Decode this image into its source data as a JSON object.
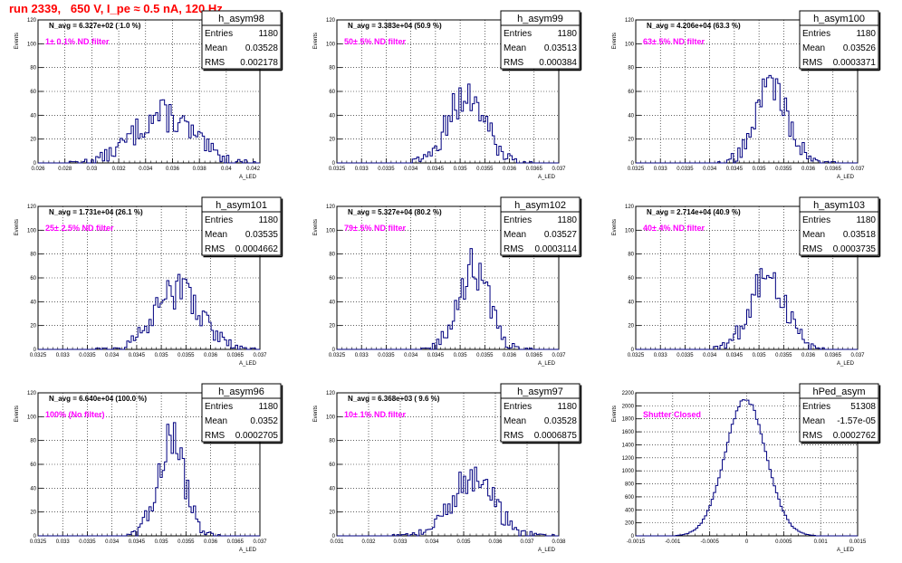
{
  "page": {
    "title": "run 2339,   650 V, I_pe ≈ 0.5 nA, 120 Hz",
    "stats_labels": [
      "Entries",
      "Mean",
      "RMS"
    ],
    "y_axis_label": "Events",
    "x_axis_label": "A_LED",
    "colors": {
      "title": "#ff0000",
      "note": "#ff00ff",
      "histogram": "#000080",
      "grid": "#000000"
    }
  },
  "chart_data": [
    {
      "type": "histogram",
      "name": "h_asym98",
      "n_avg": "N_avg = 6.327e+02 ( 1.0 %)",
      "note": "1± 0.1% ND filter",
      "stats": {
        "entries": "1180",
        "mean": "0.03528",
        "rms": "0.002178"
      },
      "xlim": [
        0.026,
        0.0425
      ],
      "ylim": [
        0,
        120
      ],
      "xticks": [
        0.026,
        0.028,
        0.03,
        0.032,
        0.034,
        0.036,
        0.038,
        0.04,
        0.042
      ],
      "xtick_labels": [
        "0.026",
        "0.028",
        "0.03",
        "0.032",
        "0.034",
        "0.036",
        "0.038",
        "0.04",
        "0.042"
      ],
      "yticks": [
        0,
        20,
        40,
        60,
        80,
        100,
        120
      ],
      "dist": {
        "mean": 0.03528,
        "sigma": 0.002178,
        "peak": 40
      }
    },
    {
      "type": "histogram",
      "name": "h_asym99",
      "n_avg": "N_avg = 3.383e+04 (50.9 %)",
      "note": "50± 5% ND filter",
      "stats": {
        "entries": "1180",
        "mean": "0.03513",
        "rms": "0.000384"
      },
      "xlim": [
        0.0325,
        0.037
      ],
      "ylim": [
        0,
        120
      ],
      "xticks": [
        0.0325,
        0.033,
        0.0335,
        0.034,
        0.0345,
        0.035,
        0.0355,
        0.036,
        0.0365,
        0.037
      ],
      "xtick_labels": [
        "0.0325",
        "0.033",
        "0.0335",
        "0.034",
        "0.0345",
        "0.035",
        "0.0355",
        "0.036",
        "0.0365",
        "0.037"
      ],
      "yticks": [
        0,
        20,
        40,
        60,
        80,
        100,
        120
      ],
      "dist": {
        "mean": 0.03513,
        "sigma": 0.000384,
        "peak": 56
      }
    },
    {
      "type": "histogram",
      "name": "h_asym100",
      "n_avg": "N_avg = 4.206e+04 (63.3 %)",
      "note": "63± 5% ND filter",
      "stats": {
        "entries": "1180",
        "mean": "0.03526",
        "rms": "0.0003371"
      },
      "xlim": [
        0.0325,
        0.037
      ],
      "ylim": [
        0,
        120
      ],
      "xticks": [
        0.0325,
        0.033,
        0.0335,
        0.034,
        0.0345,
        0.035,
        0.0355,
        0.036,
        0.0365,
        0.037
      ],
      "xtick_labels": [
        "0.0325",
        "0.033",
        "0.0335",
        "0.034",
        "0.0345",
        "0.035",
        "0.0355",
        "0.036",
        "0.0365",
        "0.037"
      ],
      "yticks": [
        0,
        20,
        40,
        60,
        80,
        100,
        120
      ],
      "dist": {
        "mean": 0.03526,
        "sigma": 0.0003371,
        "peak": 64
      }
    },
    {
      "type": "histogram",
      "name": "h_asym101",
      "n_avg": "N_avg = 1.731e+04 (26.1 %)",
      "note": "25± 2.5% ND filter",
      "stats": {
        "entries": "1180",
        "mean": "0.03535",
        "rms": "0.0004662"
      },
      "xlim": [
        0.0325,
        0.037
      ],
      "ylim": [
        0,
        120
      ],
      "xticks": [
        0.0325,
        0.033,
        0.0335,
        0.034,
        0.0345,
        0.035,
        0.0355,
        0.036,
        0.0365,
        0.037
      ],
      "xtick_labels": [
        "0.0325",
        "0.033",
        "0.0335",
        "0.034",
        "0.0345",
        "0.035",
        "0.0355",
        "0.036",
        "0.0365",
        "0.037"
      ],
      "yticks": [
        0,
        20,
        40,
        60,
        80,
        100,
        120
      ],
      "dist": {
        "mean": 0.03535,
        "sigma": 0.0004662,
        "peak": 50
      }
    },
    {
      "type": "histogram",
      "name": "h_asym102",
      "n_avg": "N_avg = 5.327e+04 (80.2 %)",
      "note": "79± 5% ND filter",
      "stats": {
        "entries": "1180",
        "mean": "0.03527",
        "rms": "0.0003114"
      },
      "xlim": [
        0.0325,
        0.037
      ],
      "ylim": [
        0,
        120
      ],
      "xticks": [
        0.0325,
        0.033,
        0.0335,
        0.034,
        0.0345,
        0.035,
        0.0355,
        0.036,
        0.0365,
        0.037
      ],
      "xtick_labels": [
        "0.0325",
        "0.033",
        "0.0335",
        "0.034",
        "0.0345",
        "0.035",
        "0.0355",
        "0.036",
        "0.0365",
        "0.037"
      ],
      "yticks": [
        0,
        20,
        40,
        60,
        80,
        100,
        120
      ],
      "dist": {
        "mean": 0.03527,
        "sigma": 0.0003114,
        "peak": 68
      }
    },
    {
      "type": "histogram",
      "name": "h_asym103",
      "n_avg": "N_avg = 2.714e+04 (40.9 %)",
      "note": "40± 4% ND filter",
      "stats": {
        "entries": "1180",
        "mean": "0.03518",
        "rms": "0.0003735"
      },
      "xlim": [
        0.0325,
        0.037
      ],
      "ylim": [
        0,
        120
      ],
      "xticks": [
        0.0325,
        0.033,
        0.0335,
        0.034,
        0.0345,
        0.035,
        0.0355,
        0.036,
        0.0365,
        0.037
      ],
      "xtick_labels": [
        "0.0325",
        "0.033",
        "0.0335",
        "0.034",
        "0.0345",
        "0.035",
        "0.0355",
        "0.036",
        "0.0365",
        "0.037"
      ],
      "yticks": [
        0,
        20,
        40,
        60,
        80,
        100,
        120
      ],
      "dist": {
        "mean": 0.03518,
        "sigma": 0.0003735,
        "peak": 58
      }
    },
    {
      "type": "histogram",
      "name": "h_asym96",
      "n_avg": "N_avg = 6.640e+04 (100.0 %)",
      "note": "100% (No filter)",
      "stats": {
        "entries": "1180",
        "mean": "0.0352",
        "rms": "0.0002705"
      },
      "xlim": [
        0.0325,
        0.037
      ],
      "ylim": [
        0,
        120
      ],
      "xticks": [
        0.0325,
        0.033,
        0.0335,
        0.034,
        0.0345,
        0.035,
        0.0355,
        0.036,
        0.0365,
        0.037
      ],
      "xtick_labels": [
        "0.0325",
        "0.033",
        "0.0335",
        "0.034",
        "0.0345",
        "0.035",
        "0.0355",
        "0.036",
        "0.0365",
        "0.037"
      ],
      "yticks": [
        0,
        20,
        40,
        60,
        80,
        100,
        120
      ],
      "dist": {
        "mean": 0.0352,
        "sigma": 0.0002705,
        "peak": 82
      }
    },
    {
      "type": "histogram",
      "name": "h_asym97",
      "n_avg": "N_avg = 6.368e+03 ( 9.6 %)",
      "note": "10± 1% ND filter",
      "stats": {
        "entries": "1180",
        "mean": "0.03528",
        "rms": "0.0006875"
      },
      "xlim": [
        0.031,
        0.038
      ],
      "ylim": [
        0,
        120
      ],
      "xticks": [
        0.031,
        0.032,
        0.033,
        0.034,
        0.035,
        0.036,
        0.037,
        0.038
      ],
      "xtick_labels": [
        "0.031",
        "0.032",
        "0.033",
        "0.034",
        "0.035",
        "0.036",
        "0.037",
        "0.038"
      ],
      "yticks": [
        0,
        20,
        40,
        60,
        80,
        100,
        120
      ],
      "dist": {
        "mean": 0.03528,
        "sigma": 0.0006875,
        "peak": 47
      }
    },
    {
      "type": "histogram",
      "name": "hPed_asym",
      "n_avg": "",
      "note": "Shutter Closed",
      "stats": {
        "entries": "51308",
        "mean": "-1.57e-05",
        "rms": "0.0002762"
      },
      "xlim": [
        -0.0015,
        0.0015
      ],
      "ylim": [
        0,
        2200
      ],
      "xticks": [
        -0.0015,
        -0.001,
        -0.0005,
        0,
        0.0005,
        0.001,
        0.0015
      ],
      "xtick_labels": [
        "-0.0015",
        "-0.001",
        "-0.0005",
        "0",
        "0.0005",
        "0.001",
        "0.0015"
      ],
      "yticks": [
        0,
        200,
        400,
        600,
        800,
        1000,
        1200,
        1400,
        1600,
        1800,
        2000,
        2200
      ],
      "dist": {
        "mean": -1.57e-05,
        "sigma": 0.0002762,
        "peak": 2100
      }
    }
  ]
}
